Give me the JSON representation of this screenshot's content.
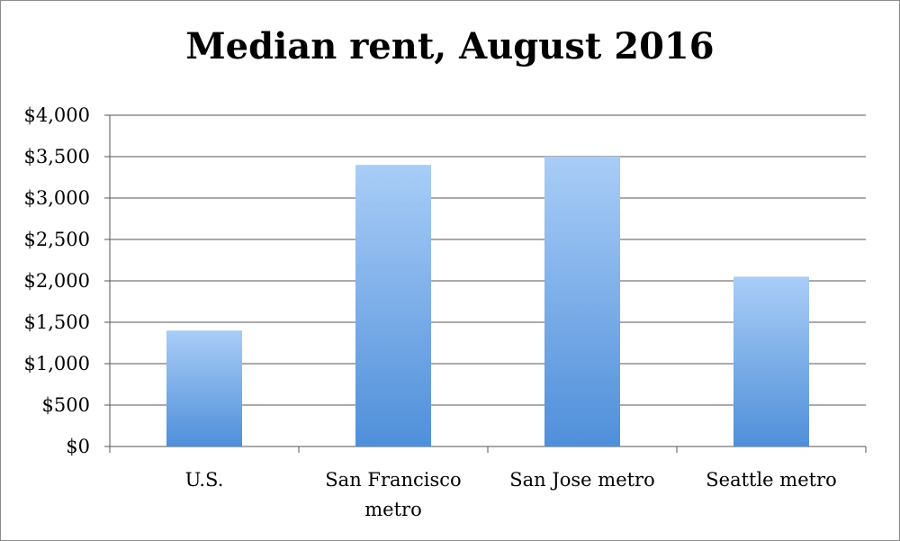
{
  "chart_data": {
    "type": "bar",
    "title": "Median rent, August 2016",
    "categories": [
      "U.S.",
      "San Francisco metro",
      "San Jose metro",
      "Seattle metro"
    ],
    "category_lines": [
      [
        "U.S."
      ],
      [
        "San Francisco",
        "metro"
      ],
      [
        "San Jose metro"
      ],
      [
        "Seattle metro"
      ]
    ],
    "values": [
      1400,
      3400,
      3500,
      2050
    ],
    "ylim": [
      0,
      4000
    ],
    "yticks": [
      0,
      500,
      1000,
      1500,
      2000,
      2500,
      3000,
      3500,
      4000
    ],
    "ytick_labels": [
      "$0",
      "$500",
      "$1,000",
      "$1,500",
      "$2,000",
      "$2,500",
      "$3,000",
      "$3,500",
      "$4,000"
    ],
    "xlabel": "",
    "ylabel": "",
    "grid": true,
    "legend": "none",
    "colors": {
      "bar_top": "#a9cdf7",
      "bar_bottom": "#4f8fda",
      "grid": "#555555"
    }
  }
}
